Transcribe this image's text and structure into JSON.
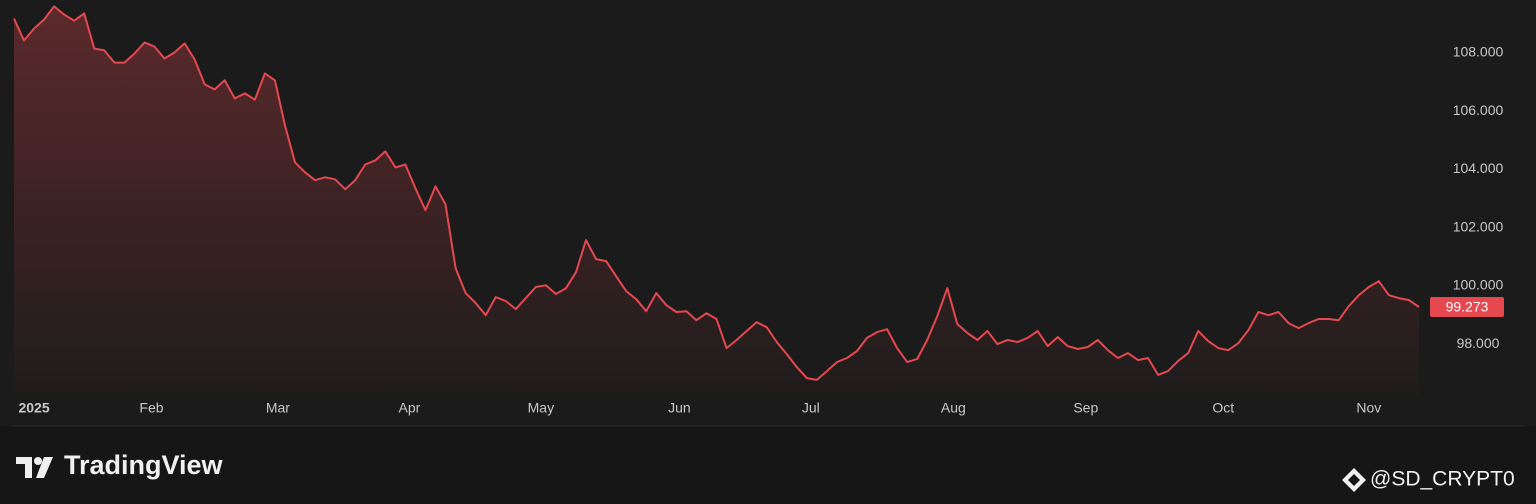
{
  "chart_data": {
    "type": "line",
    "series": [
      {
        "name": null,
        "color": "#e5484f",
        "values": [
          109.18,
          108.43,
          108.84,
          109.15,
          109.6,
          109.32,
          109.11,
          109.36,
          108.15,
          108.09,
          107.67,
          107.67,
          107.98,
          108.36,
          108.22,
          107.81,
          108.02,
          108.33,
          107.78,
          106.92,
          106.75,
          107.06,
          106.44,
          106.61,
          106.4,
          107.3,
          107.06,
          105.51,
          104.24,
          103.9,
          103.63,
          103.73,
          103.66,
          103.32,
          103.63,
          104.17,
          104.31,
          104.62,
          104.07,
          104.17,
          103.35,
          102.6,
          103.42,
          102.8,
          100.61,
          99.75,
          99.41,
          98.99,
          99.61,
          99.48,
          99.2,
          99.58,
          99.96,
          100.02,
          99.72,
          99.92,
          100.47,
          101.57,
          100.92,
          100.85,
          100.33,
          99.82,
          99.54,
          99.13,
          99.75,
          99.34,
          99.1,
          99.13,
          98.82,
          99.06,
          98.86,
          97.86,
          98.14,
          98.45,
          98.75,
          98.58,
          98.07,
          97.66,
          97.21,
          96.83,
          96.77,
          97.07,
          97.38,
          97.52,
          97.76,
          98.21,
          98.41,
          98.51,
          97.86,
          97.38,
          97.49,
          98.14,
          98.96,
          99.92,
          98.69,
          98.38,
          98.14,
          98.45,
          98.0,
          98.14,
          98.07,
          98.21,
          98.45,
          97.93,
          98.24,
          97.93,
          97.83,
          97.9,
          98.14,
          97.79,
          97.52,
          97.69,
          97.45,
          97.52,
          96.94,
          97.07,
          97.42,
          97.69,
          98.45,
          98.1,
          97.86,
          97.79,
          98.03,
          98.48,
          99.1,
          98.99,
          99.1,
          98.72,
          98.55,
          98.72,
          98.86,
          98.86,
          98.82,
          99.3,
          99.68,
          99.96,
          100.16,
          99.68,
          99.58,
          99.51,
          99.273
        ]
      }
    ],
    "ylim": [
      96.25,
      109.82
    ],
    "yticks": [
      {
        "value": 98,
        "label": "98.000"
      },
      {
        "value": 100,
        "label": "100.000"
      },
      {
        "value": 102,
        "label": "102.000"
      },
      {
        "value": 104,
        "label": "104.000"
      },
      {
        "value": 106,
        "label": "106.000"
      },
      {
        "value": 108,
        "label": "108.000"
      }
    ],
    "xlim": [
      0,
      140.6
    ],
    "xticks": [
      {
        "value": 2,
        "label": "2025"
      },
      {
        "value": 13.7,
        "label": "Feb"
      },
      {
        "value": 26.3,
        "label": "Mar"
      },
      {
        "value": 39.4,
        "label": "Apr"
      },
      {
        "value": 52.5,
        "label": "May"
      },
      {
        "value": 66.3,
        "label": "Jun"
      },
      {
        "value": 79.4,
        "label": "Jul"
      },
      {
        "value": 93.6,
        "label": "Aug"
      },
      {
        "value": 106.8,
        "label": "Sep"
      },
      {
        "value": 120.5,
        "label": "Oct"
      },
      {
        "value": 135,
        "label": "Nov"
      }
    ],
    "grid": false
  },
  "brand": "TradingView",
  "watermark": "@SD_CRYPT0"
}
